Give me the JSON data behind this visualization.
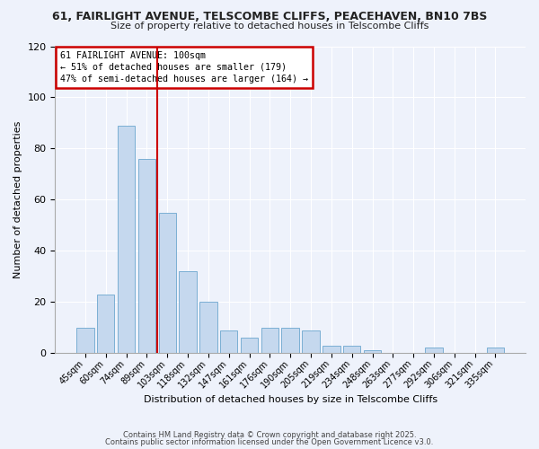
{
  "title1": "61, FAIRLIGHT AVENUE, TELSCOMBE CLIFFS, PEACEHAVEN, BN10 7BS",
  "title2": "Size of property relative to detached houses in Telscombe Cliffs",
  "xlabel": "Distribution of detached houses by size in Telscombe Cliffs",
  "ylabel": "Number of detached properties",
  "categories": [
    "45sqm",
    "60sqm",
    "74sqm",
    "89sqm",
    "103sqm",
    "118sqm",
    "132sqm",
    "147sqm",
    "161sqm",
    "176sqm",
    "190sqm",
    "205sqm",
    "219sqm",
    "234sqm",
    "248sqm",
    "263sqm",
    "277sqm",
    "292sqm",
    "306sqm",
    "321sqm",
    "335sqm"
  ],
  "values": [
    10,
    23,
    89,
    76,
    55,
    32,
    20,
    9,
    6,
    10,
    10,
    9,
    3,
    3,
    1,
    0,
    0,
    2,
    0,
    0,
    2
  ],
  "bar_color": "#c5d8ee",
  "bar_edge_color": "#7bafd4",
  "vline_color": "#cc0000",
  "annotation_title": "61 FAIRLIGHT AVENUE: 100sqm",
  "annotation_line1": "← 51% of detached houses are smaller (179)",
  "annotation_line2": "47% of semi-detached houses are larger (164) →",
  "annotation_box_edgecolor": "#cc0000",
  "ylim": [
    0,
    120
  ],
  "yticks": [
    0,
    20,
    40,
    60,
    80,
    100,
    120
  ],
  "footer1": "Contains HM Land Registry data © Crown copyright and database right 2025.",
  "footer2": "Contains public sector information licensed under the Open Government Licence v3.0.",
  "bg_color": "#eef2fb",
  "grid_color": "#ffffff"
}
